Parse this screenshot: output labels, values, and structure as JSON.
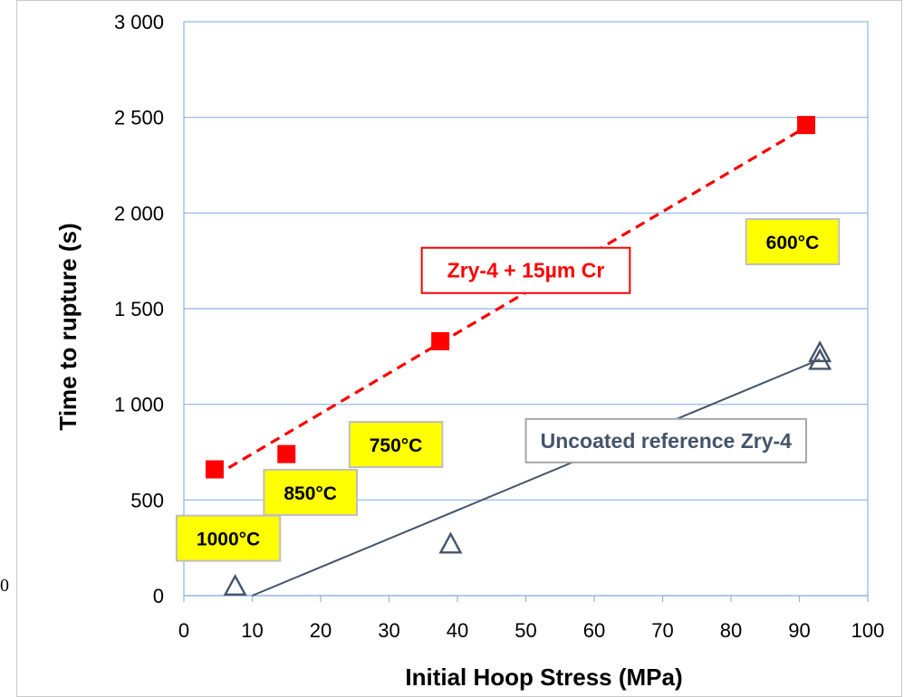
{
  "edge_label": "0",
  "chart_data": {
    "type": "scatter",
    "xlabel": "Initial Hoop Stress (MPa)",
    "ylabel": "Time to rupture (s)",
    "xlim": [
      0,
      100
    ],
    "ylim": [
      0,
      3000
    ],
    "x_ticks": [
      0,
      10,
      20,
      30,
      40,
      50,
      60,
      70,
      80,
      90,
      100
    ],
    "y_tick_labels": [
      "0",
      "500",
      "1 000",
      "1 500",
      "2 000",
      "2 500",
      "3 000"
    ],
    "y_ticks": [
      0,
      500,
      1000,
      1500,
      2000,
      2500,
      3000
    ],
    "grid": "horizontal",
    "series": [
      {
        "name": "Zry-4 + 15µm Cr",
        "marker": "square",
        "color": "#ff0000",
        "points": [
          [
            4.5,
            660
          ],
          [
            15,
            740
          ],
          [
            37.5,
            1330
          ],
          [
            91,
            2460
          ]
        ],
        "trendline": {
          "style": "dashed",
          "from": [
            4.5,
            625
          ],
          "to": [
            91,
            2450
          ]
        }
      },
      {
        "name": "Uncoated reference Zry-4",
        "marker": "triangle",
        "color": "#44546a",
        "points": [
          [
            7.5,
            50
          ],
          [
            39,
            270
          ],
          [
            93,
            1230
          ],
          [
            93,
            1270
          ]
        ],
        "trendline": {
          "style": "solid",
          "from": [
            10,
            0
          ],
          "to": [
            93,
            1235
          ]
        }
      }
    ],
    "annotations": [
      {
        "text": "1000°C",
        "x": 6.5,
        "y": 300,
        "style": "yellow"
      },
      {
        "text": "850°C",
        "x": 18.5,
        "y": 540,
        "style": "yellow"
      },
      {
        "text": "750°C",
        "x": 31,
        "y": 790,
        "style": "yellow"
      },
      {
        "text": "600°C",
        "x": 89,
        "y": 1850,
        "style": "yellow"
      },
      {
        "text": "Zry-4 + 15µm Cr",
        "x": 50,
        "y": 1700,
        "style": "red"
      },
      {
        "text": "Uncoated reference Zry-4",
        "x": 70.5,
        "y": 810,
        "style": "gray"
      }
    ],
    "colors": {
      "highlight": "#ffff00",
      "coated": "#ff0000",
      "uncoated": "#44546a"
    }
  }
}
